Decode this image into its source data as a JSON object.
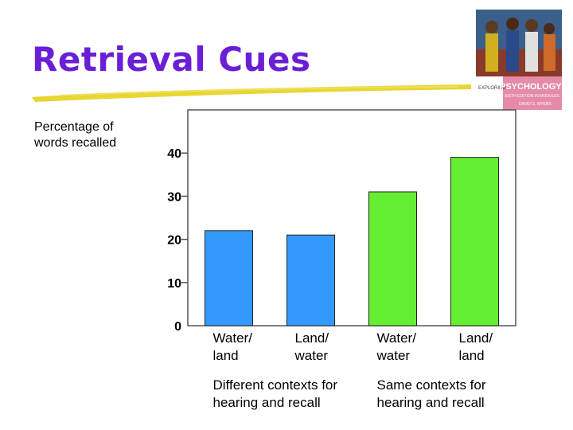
{
  "slide": {
    "title": "Retrieval Cues"
  },
  "book_cover": {
    "series": "EXPLORING",
    "title": "PSYCHOLOGY",
    "edition": "SIXTH EDITION IN MODULES",
    "author": "DAVID G. MYERS"
  },
  "colors": {
    "title": "#6a1fd6",
    "highlight": "#e6d21c",
    "different_context": "#3399ff",
    "same_context": "#66ee33"
  },
  "chart_data": {
    "type": "bar",
    "ylabel": "Percentage of words recalled",
    "ylim": [
      0,
      50
    ],
    "yticks": [
      0,
      10,
      20,
      30,
      40
    ],
    "grid": false,
    "categories": [
      "Water/ land",
      "Land/ water",
      "Water/ water",
      "Land/ land"
    ],
    "category_lines": [
      [
        "Water/",
        "land"
      ],
      [
        "Land/",
        "water"
      ],
      [
        "Water/",
        "water"
      ],
      [
        "Land/",
        "land"
      ]
    ],
    "values": [
      22,
      21,
      31,
      39
    ],
    "bar_colors": [
      "#3399ff",
      "#3399ff",
      "#66ee33",
      "#66ee33"
    ],
    "groups": [
      {
        "lines": [
          "Different contexts for",
          "hearing and recall"
        ],
        "categories": [
          0,
          1
        ]
      },
      {
        "lines": [
          "Same contexts for",
          "hearing and recall"
        ],
        "categories": [
          2,
          3
        ]
      }
    ]
  }
}
